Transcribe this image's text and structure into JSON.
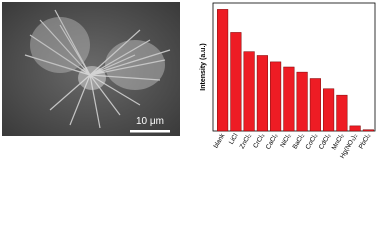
{
  "image": {
    "scale_bar": "10 μm"
  },
  "chart_data": {
    "type": "bar",
    "ylabel": "Intensity (a.u.)",
    "categories": [
      "blank",
      "LiCl",
      "ZnCl₂",
      "CrCl₃",
      "CaCl₂",
      "NiCl₂",
      "BaCl₂",
      "CoCl₂",
      "CdCl₂",
      "MnCl₂",
      "Hg(NO₃)₂",
      "PbCl₂"
    ],
    "values": [
      95,
      77,
      62,
      59,
      54,
      50,
      46,
      41,
      33,
      28,
      4,
      1
    ],
    "color": "#ee1c24",
    "ylim": [
      0,
      100
    ]
  }
}
